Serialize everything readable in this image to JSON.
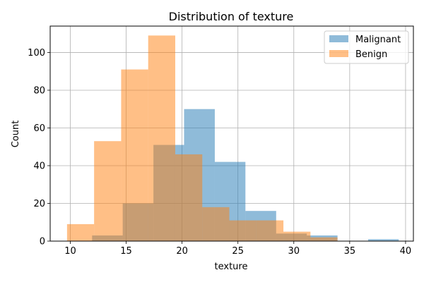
{
  "chart_data": {
    "type": "bar",
    "title": "Distribution of texture",
    "xlabel": "texture",
    "ylabel": "Count",
    "xlim": [
      8.2,
      40.7
    ],
    "ylim": [
      0,
      114
    ],
    "xticks": [
      10,
      15,
      20,
      25,
      30,
      35,
      40
    ],
    "yticks": [
      0,
      20,
      40,
      60,
      80,
      100
    ],
    "grid": true,
    "legend_position": "top-right",
    "series": [
      {
        "name": "Malignant",
        "color": "#1f77b4",
        "opacity": 0.5,
        "bins": [
          {
            "x0": 11.95,
            "x1": 14.69,
            "count": 3
          },
          {
            "x0": 14.69,
            "x1": 17.44,
            "count": 20
          },
          {
            "x0": 17.44,
            "x1": 20.18,
            "count": 51
          },
          {
            "x0": 20.18,
            "x1": 22.93,
            "count": 70
          },
          {
            "x0": 22.93,
            "x1": 25.67,
            "count": 42
          },
          {
            "x0": 25.67,
            "x1": 28.42,
            "count": 16
          },
          {
            "x0": 28.42,
            "x1": 31.16,
            "count": 4
          },
          {
            "x0": 31.16,
            "x1": 33.91,
            "count": 3
          },
          {
            "x0": 33.91,
            "x1": 36.65,
            "count": 0
          },
          {
            "x0": 36.65,
            "x1": 39.39,
            "count": 1
          }
        ]
      },
      {
        "name": "Benign",
        "color": "#ff7f0e",
        "opacity": 0.5,
        "bins": [
          {
            "x0": 9.71,
            "x1": 12.13,
            "count": 9
          },
          {
            "x0": 12.13,
            "x1": 14.55,
            "count": 53
          },
          {
            "x0": 14.55,
            "x1": 16.97,
            "count": 91
          },
          {
            "x0": 16.97,
            "x1": 19.39,
            "count": 109
          },
          {
            "x0": 19.39,
            "x1": 21.81,
            "count": 46
          },
          {
            "x0": 21.81,
            "x1": 24.23,
            "count": 18
          },
          {
            "x0": 24.23,
            "x1": 26.65,
            "count": 11
          },
          {
            "x0": 26.65,
            "x1": 29.07,
            "count": 11
          },
          {
            "x0": 29.07,
            "x1": 31.49,
            "count": 5
          },
          {
            "x0": 31.49,
            "x1": 33.91,
            "count": 2
          }
        ]
      }
    ]
  }
}
